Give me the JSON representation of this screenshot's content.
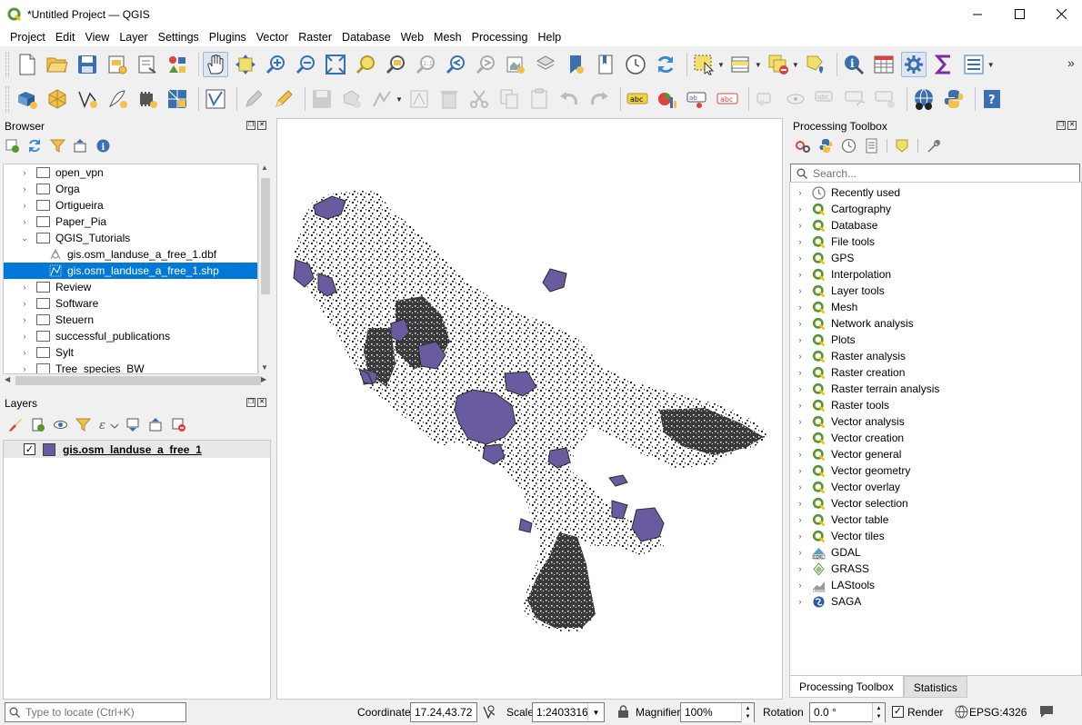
{
  "window": {
    "title": "*Untitled Project — QGIS",
    "controls": [
      "minimize-icon",
      "maximize-icon",
      "close-icon"
    ]
  },
  "menu": {
    "items": [
      "Project",
      "Edit",
      "View",
      "Layer",
      "Settings",
      "Plugins",
      "Vector",
      "Raster",
      "Database",
      "Web",
      "Mesh",
      "Processing",
      "Help"
    ]
  },
  "browser": {
    "title": "Browser",
    "items": [
      {
        "label": "open_vpn",
        "type": "folder",
        "expanded": false
      },
      {
        "label": "Orga",
        "type": "folder",
        "expanded": false
      },
      {
        "label": "Ortigueira",
        "type": "folder",
        "expanded": false
      },
      {
        "label": "Paper_Pia",
        "type": "folder",
        "expanded": false
      },
      {
        "label": "QGIS_Tutorials",
        "type": "folder",
        "expanded": true
      },
      {
        "label": "gis.osm_landuse_a_free_1.dbf",
        "type": "file",
        "expanded": false
      },
      {
        "label": "gis.osm_landuse_a_free_1.shp",
        "type": "file",
        "selected": true
      },
      {
        "label": "Review",
        "type": "folder",
        "expanded": false
      },
      {
        "label": "Software",
        "type": "folder",
        "expanded": false
      },
      {
        "label": "Steuern",
        "type": "folder",
        "expanded": false
      },
      {
        "label": "successful_publications",
        "type": "folder",
        "expanded": false
      },
      {
        "label": "Sylt",
        "type": "folder",
        "expanded": false
      },
      {
        "label": "Tree_species_BW",
        "type": "folder",
        "expanded": false
      }
    ]
  },
  "layers": {
    "title": "Layers",
    "items": [
      {
        "label": "gis.osm_landuse_a_free_1",
        "checked": true,
        "color": "#6a5aa0"
      }
    ]
  },
  "toolbox": {
    "title": "Processing Toolbox",
    "search_placeholder": "Search...",
    "items": [
      {
        "label": "Recently used",
        "icon": "clock-icon"
      },
      {
        "label": "Cartography",
        "icon": "qgis-icon"
      },
      {
        "label": "Database",
        "icon": "qgis-icon"
      },
      {
        "label": "File tools",
        "icon": "qgis-icon"
      },
      {
        "label": "GPS",
        "icon": "qgis-icon"
      },
      {
        "label": "Interpolation",
        "icon": "qgis-icon"
      },
      {
        "label": "Layer tools",
        "icon": "qgis-icon"
      },
      {
        "label": "Mesh",
        "icon": "qgis-icon"
      },
      {
        "label": "Network analysis",
        "icon": "qgis-icon"
      },
      {
        "label": "Plots",
        "icon": "qgis-icon"
      },
      {
        "label": "Raster analysis",
        "icon": "qgis-icon"
      },
      {
        "label": "Raster creation",
        "icon": "qgis-icon"
      },
      {
        "label": "Raster terrain analysis",
        "icon": "qgis-icon"
      },
      {
        "label": "Raster tools",
        "icon": "qgis-icon"
      },
      {
        "label": "Vector analysis",
        "icon": "qgis-icon"
      },
      {
        "label": "Vector creation",
        "icon": "qgis-icon"
      },
      {
        "label": "Vector general",
        "icon": "qgis-icon"
      },
      {
        "label": "Vector geometry",
        "icon": "qgis-icon"
      },
      {
        "label": "Vector overlay",
        "icon": "qgis-icon"
      },
      {
        "label": "Vector selection",
        "icon": "qgis-icon"
      },
      {
        "label": "Vector table",
        "icon": "qgis-icon"
      },
      {
        "label": "Vector tiles",
        "icon": "qgis-icon"
      },
      {
        "label": "GDAL",
        "icon": "gdal-icon"
      },
      {
        "label": "GRASS",
        "icon": "grass-icon"
      },
      {
        "label": "LAStools",
        "icon": "lastools-icon"
      },
      {
        "label": "SAGA",
        "icon": "saga-icon"
      }
    ],
    "tabs": [
      "Processing Toolbox",
      "Statistics"
    ]
  },
  "statusbar": {
    "locate_placeholder": "Type to locate (Ctrl+K)",
    "coordinate_label": "Coordinate",
    "coordinate_value": "17.24,43.72",
    "scale_label": "Scale",
    "scale_value": "1:2403316",
    "magnifier_label": "Magnifier",
    "magnifier_value": "100%",
    "rotation_label": "Rotation",
    "rotation_value": "0.0 °",
    "render_label": "Render",
    "render_checked": true,
    "crs": "EPSG:4326"
  },
  "colors": {
    "selection": "#0078d7",
    "layer_fill": "#6a5aa0",
    "map_features": "#2b2b2b",
    "qgis_green": "#589632"
  }
}
